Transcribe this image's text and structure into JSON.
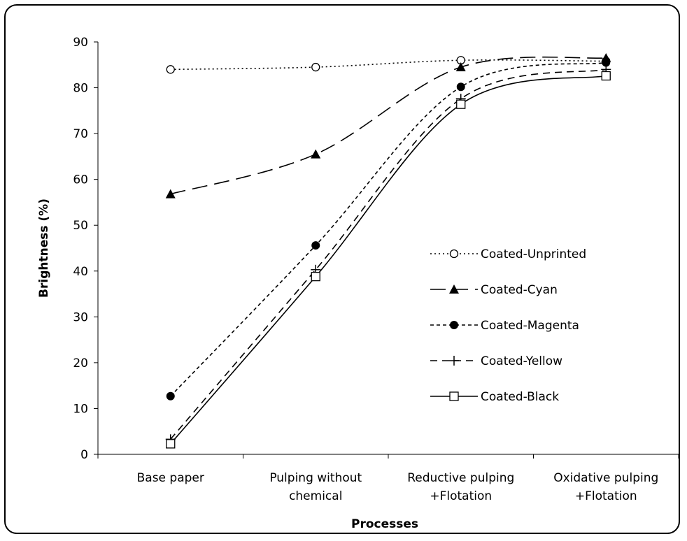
{
  "chart_data": {
    "type": "line",
    "categories": [
      [
        "Base paper"
      ],
      [
        "Pulping without",
        "chemical"
      ],
      [
        "Reductive pulping",
        "+Flotation"
      ],
      [
        "Oxidative pulping",
        "+Flotation"
      ]
    ],
    "xlabel": "Processes",
    "ylabel": "Brightness (%)",
    "ylim": [
      0,
      90
    ],
    "yticks": [
      0,
      10,
      20,
      30,
      40,
      50,
      60,
      70,
      80,
      90
    ],
    "grid": false,
    "legend_position": "right",
    "series": [
      {
        "name": "Coated-Unprinted",
        "values": [
          84.0,
          84.5,
          86.0,
          85.8
        ],
        "marker": "open-circle",
        "dash": "dotted",
        "color": "#000000"
      },
      {
        "name": "Coated-Cyan",
        "values": [
          56.8,
          65.5,
          84.5,
          86.5
        ],
        "marker": "triangle",
        "dash": "long-dash",
        "color": "#000000"
      },
      {
        "name": "Coated-Magenta",
        "values": [
          12.7,
          45.6,
          80.2,
          85.5
        ],
        "marker": "filled-circle",
        "dash": "short-dash",
        "color": "#000000"
      },
      {
        "name": "Coated-Yellow",
        "values": [
          3.3,
          40.3,
          77.6,
          84.0
        ],
        "marker": "plus",
        "dash": "dash",
        "color": "#000000"
      },
      {
        "name": "Coated-Black",
        "values": [
          2.3,
          38.8,
          76.4,
          82.6
        ],
        "marker": "open-square",
        "dash": "solid",
        "color": "#000000"
      }
    ]
  }
}
